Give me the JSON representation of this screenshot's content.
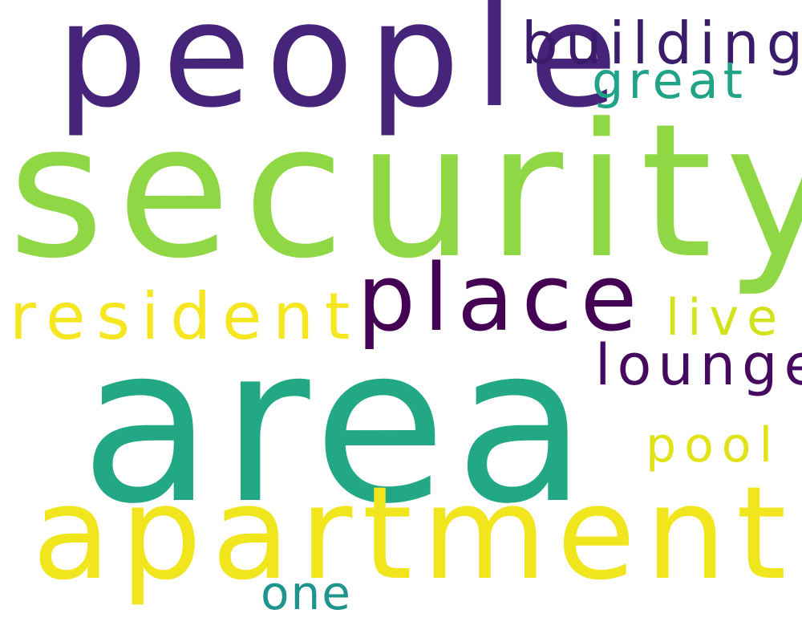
{
  "word_cloud": {
    "words": {
      "area": {
        "text": "area",
        "color": "#22a884"
      },
      "security": {
        "text": "security",
        "color": "#8fd744"
      },
      "people": {
        "text": "people",
        "color": "#46247a"
      },
      "apartment": {
        "text": "apartment",
        "color": "#f1e51d"
      },
      "place": {
        "text": "place",
        "color": "#440154"
      },
      "resident": {
        "text": "resident",
        "color": "#f6e620"
      },
      "building": {
        "text": "building",
        "color": "#3b1c6a"
      },
      "lounge": {
        "text": "lounge",
        "color": "#450a5f"
      },
      "great": {
        "text": "great",
        "color": "#20a386"
      },
      "live": {
        "text": "live",
        "color": "#d2e21b"
      },
      "pool": {
        "text": "pool",
        "color": "#dfe318"
      },
      "one": {
        "text": "one",
        "color": "#1f948c"
      }
    }
  }
}
